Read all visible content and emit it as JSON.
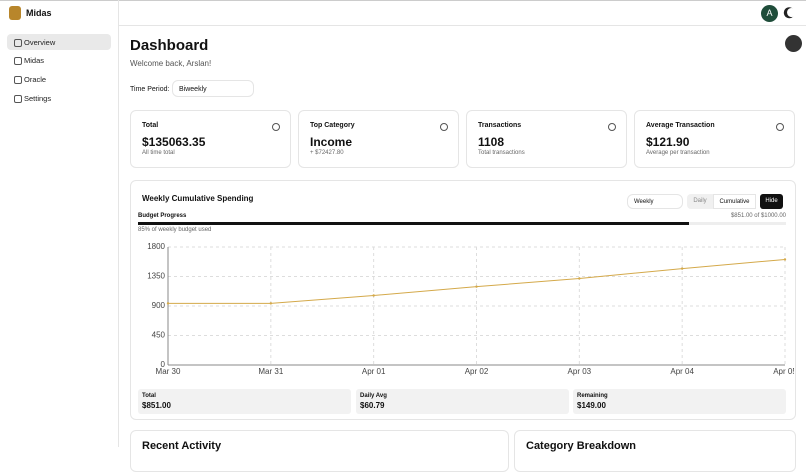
{
  "app": {
    "name": "Midas",
    "avatar": "A"
  },
  "sidebar": {
    "items": [
      "Overview",
      "Midas",
      "Oracle",
      "Settings"
    ]
  },
  "header": {
    "title": "Dashboard",
    "subtitle": "Welcome back, Arslan!",
    "period_label": "Time Period:",
    "period": "Biweekly"
  },
  "cards": [
    {
      "label": "Total",
      "value": "$135063.35",
      "note": "All time total"
    },
    {
      "label": "Top Category",
      "value": "Income",
      "note": "+ $72427.80"
    },
    {
      "label": "Transactions",
      "value": "1108",
      "note": "Total transactions"
    },
    {
      "label": "Average Transaction",
      "value": "$121.90",
      "note": "Average per transaction"
    }
  ],
  "panel": {
    "title": "Weekly Cumulative Spending",
    "select": "Weekly",
    "toggle": [
      "Daily",
      "Cumulative"
    ],
    "hide": "Hide"
  },
  "budget": {
    "label": "Budget Progress",
    "amount": "$851.00 of $1000.00",
    "percent": 85,
    "note": "85% of weekly budget used"
  },
  "chart_data": {
    "type": "line",
    "categories": [
      "Mar 30",
      "Mar 31",
      "Apr 01",
      "Apr 02",
      "Apr 03",
      "Apr 04",
      "Apr 05"
    ],
    "values": [
      940,
      940,
      1060,
      1195,
      1320,
      1470,
      1610
    ],
    "color": "#d4a94a",
    "ylim": [
      0,
      1800
    ],
    "yticks": [
      0,
      450,
      900,
      1350,
      1800
    ],
    "grid": true
  },
  "stats": [
    {
      "label": "Total",
      "value": "$851.00"
    },
    {
      "label": "Daily Avg",
      "value": "$60.79"
    },
    {
      "label": "Remaining",
      "value": "$149.00"
    }
  ],
  "bottom": [
    "Recent Activity",
    "Category Breakdown"
  ]
}
